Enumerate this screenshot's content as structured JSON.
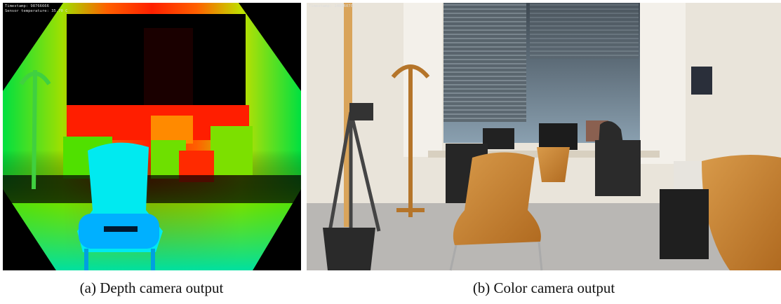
{
  "figure": {
    "panels": [
      {
        "caption": "(a) Depth camera output",
        "overlay": [
          "Timestamp: 98766666",
          "Sensor temperature: 35.70 C"
        ]
      },
      {
        "caption": "(b) Color camera output",
        "overlay": [
          "Timestamp: 14036070"
        ]
      }
    ]
  }
}
